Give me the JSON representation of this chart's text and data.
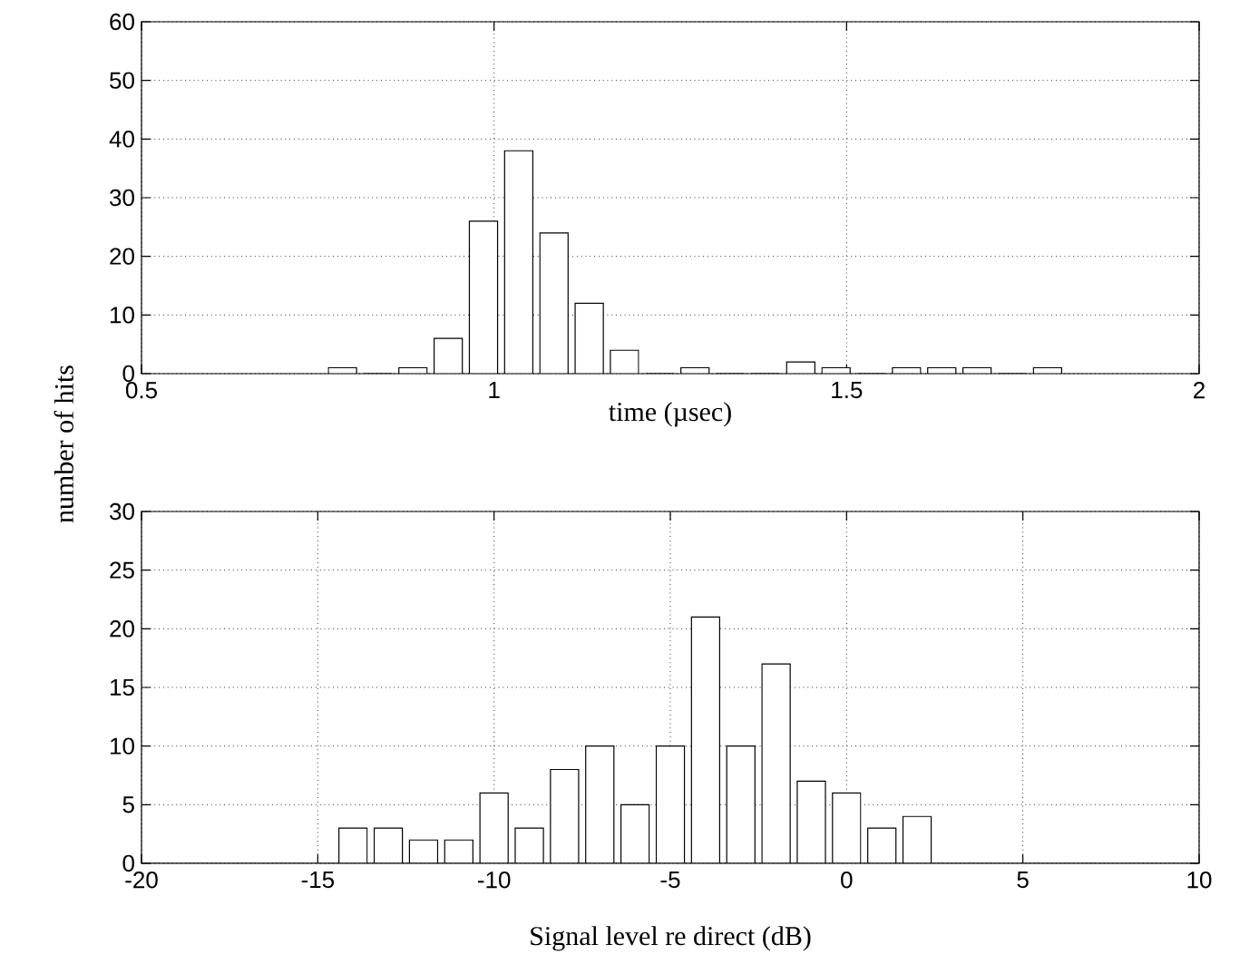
{
  "chart_data": [
    {
      "type": "histogram",
      "xlabel": "time (µsec)",
      "ylabel": "number of hits",
      "color": "#ffffff",
      "bins": [
        0.76,
        0.81,
        0.86,
        0.91,
        0.96,
        1.01,
        1.06,
        1.11,
        1.16,
        1.21,
        1.26,
        1.31,
        1.36,
        1.41,
        1.46,
        1.51,
        1.56,
        1.61,
        1.66,
        1.71,
        1.76,
        1.81
      ],
      "values": [
        1,
        0,
        1,
        6,
        26,
        38,
        24,
        12,
        4,
        0,
        1,
        0,
        0,
        2,
        1,
        0,
        1,
        1,
        1,
        0,
        1
      ],
      "xlim": [
        0.5,
        2
      ],
      "xticks": [
        0.5,
        1,
        1.5,
        2
      ],
      "ylim": [
        0,
        60
      ],
      "yticks": [
        0,
        10,
        20,
        30,
        40,
        50,
        60
      ],
      "grid": true
    },
    {
      "type": "histogram",
      "xlabel": "Signal level re direct (dB)",
      "color": "#ffffff",
      "bins": [
        -14.5,
        -13.5,
        -12.5,
        -11.5,
        -10.5,
        -9.5,
        -8.5,
        -7.5,
        -6.5,
        -5.5,
        -4.5,
        -3.5,
        -2.5,
        -1.5,
        -0.5,
        0.5,
        1.5,
        2.5
      ],
      "values": [
        3,
        3,
        2,
        2,
        6,
        3,
        8,
        10,
        5,
        10,
        21,
        10,
        17,
        7,
        6,
        3,
        4
      ],
      "xlim": [
        -20,
        10
      ],
      "xticks": [
        -20,
        -15,
        -10,
        -5,
        0,
        5,
        10
      ],
      "ylim": [
        0,
        30
      ],
      "yticks": [
        0,
        5,
        10,
        15,
        20,
        25,
        30
      ],
      "grid": true
    }
  ]
}
